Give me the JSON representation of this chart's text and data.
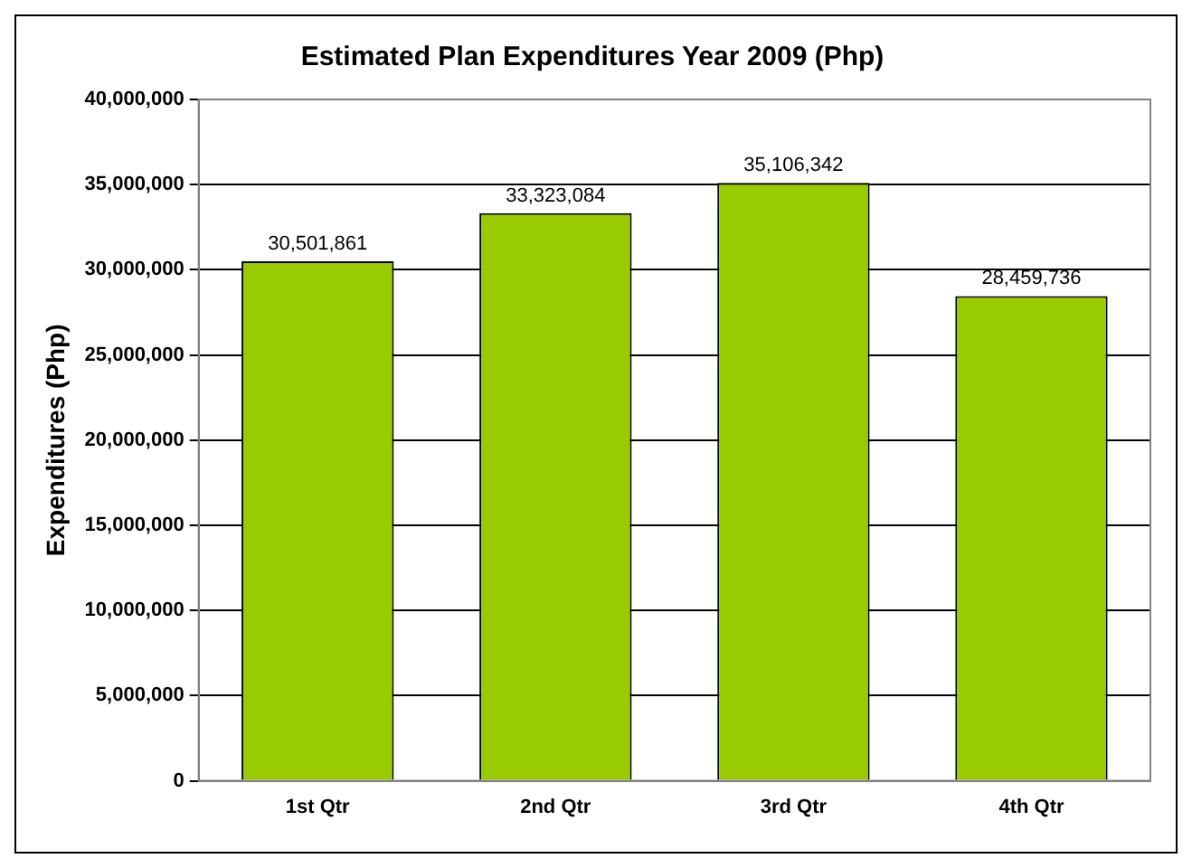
{
  "chart_data": {
    "type": "bar",
    "title": "Estimated Plan Expenditures Year 2009 (Php)",
    "ylabel": "Expenditures (Php)",
    "categories": [
      "1st Qtr",
      "2nd Qtr",
      "3rd Qtr",
      "4th Qtr"
    ],
    "values": [
      30501861,
      33323084,
      35106342,
      28459736
    ],
    "color": "#99cc00",
    "value_labels": [
      "30,501,861",
      "33,323,084",
      "35,106,342",
      "28,459,736"
    ],
    "ylim": [
      0,
      40000000
    ],
    "yticks": [
      0,
      {
        "value": 5000000,
        "label": "5,000,000"
      },
      {
        "value": 10000000,
        "label": "10,000,000"
      },
      {
        "value": 15000000,
        "label": "15,000,000"
      },
      {
        "value": 20000000,
        "label": "20,000,000"
      },
      {
        "value": 25000000,
        "label": "25,000,000"
      },
      {
        "value": 30000000,
        "label": "30,000,000"
      },
      {
        "value": 35000000,
        "label": "35,000,000"
      },
      {
        "value": 40000000,
        "label": "40,000,000"
      }
    ],
    "grid": "y",
    "legend": false
  }
}
